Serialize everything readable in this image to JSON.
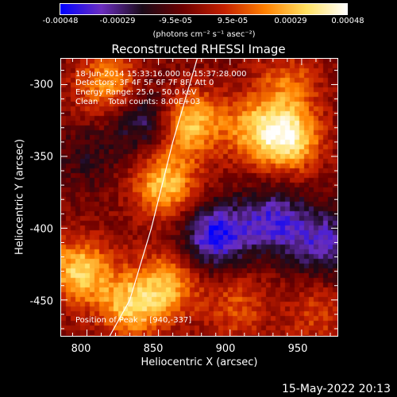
{
  "colorbar": {
    "ticks": [
      "-0.00048",
      "-0.00029",
      "-9.5e-05",
      "9.5e-05",
      "0.00029",
      "0.00048"
    ],
    "unit": "(photons cm⁻² s⁻¹ asec⁻²)",
    "colors": [
      "#0000ff",
      "#6b2ec0",
      "#1a0a18",
      "#6e0000",
      "#c42000",
      "#ff8000",
      "#ffe060",
      "#ffffff"
    ]
  },
  "info": {
    "line1": "18-Jun-2014 15:33:16.000 to 15:37:28.000",
    "line2": "Detectors: 3F 4F 5F 6F 7F 8F, Att 0",
    "line3": "Energy Range: 25.0 - 50.0 keV",
    "line4": "Clean    Total counts: 8.00E+03",
    "peak": "Position of Peak = [940,-337]"
  },
  "timestamp": "15-May-2022 20:13",
  "chart_data": {
    "type": "heatmap",
    "title": "Reconstructed RHESSI Image",
    "xlabel": "Heliocentric X (arcsec)",
    "ylabel": "Heliocentric Y (arcsec)",
    "xlim": [
      782,
      975
    ],
    "ylim": [
      -475,
      -282
    ],
    "xticks": [
      800,
      850,
      900,
      950
    ],
    "yticks": [
      -300,
      -350,
      -400,
      -450
    ],
    "zlim": [
      -0.00048,
      0.00048
    ],
    "limb_curve": [
      [
        877,
        -282
      ],
      [
        860,
        -340
      ],
      [
        845,
        -400
      ],
      [
        830,
        -450
      ],
      [
        816,
        -475
      ]
    ],
    "sources": [
      {
        "x": 940,
        "y": -337,
        "value": 0.00046
      },
      {
        "x": 870,
        "y": -327,
        "value": 0.0004
      },
      {
        "x": 854,
        "y": -370,
        "value": 0.00036
      },
      {
        "x": 795,
        "y": -430,
        "value": 0.00038
      },
      {
        "x": 830,
        "y": -455,
        "value": 0.00033
      },
      {
        "x": 855,
        "y": -440,
        "value": 0.0003
      },
      {
        "x": 815,
        "y": -300,
        "value": 0.0003
      },
      {
        "x": 915,
        "y": -330,
        "value": 0.00024
      },
      {
        "x": 940,
        "y": -300,
        "value": 0.0002
      },
      {
        "x": 905,
        "y": -455,
        "value": 0.00018
      },
      {
        "x": 960,
        "y": -460,
        "value": 0.00015
      },
      {
        "x": 890,
        "y": -405,
        "value": -0.0004
      },
      {
        "x": 930,
        "y": -395,
        "value": -0.00032
      },
      {
        "x": 842,
        "y": -325,
        "value": -0.00028
      },
      {
        "x": 965,
        "y": -410,
        "value": -0.0003
      },
      {
        "x": 800,
        "y": -350,
        "value": -0.00012
      }
    ]
  }
}
